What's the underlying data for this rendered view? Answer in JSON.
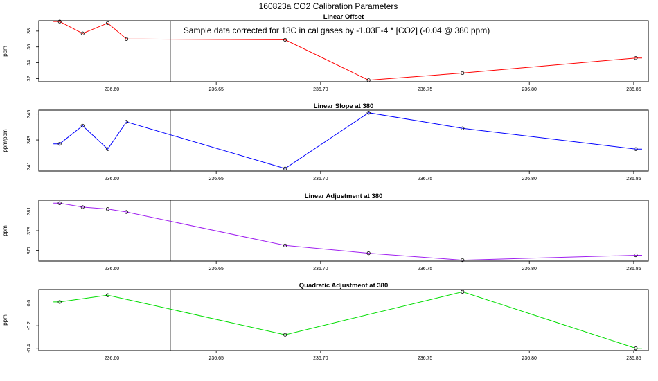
{
  "figure": {
    "title": "160823a   CO2 Calibration Parameters",
    "note": "Sample data corrected for 13C in cal gases by -1.03E-4 * [CO2] (-0.04 @ 380 ppm)"
  },
  "chart_data": [
    {
      "type": "line",
      "title": "Linear Offset",
      "xlabel": "",
      "ylabel": "ppm",
      "xlim": [
        236.565,
        236.857
      ],
      "ylim": [
        31.6,
        39.3
      ],
      "xticks": [
        "236.60",
        "236.65",
        "236.70",
        "236.75",
        "236.80",
        "236.85"
      ],
      "yticks": [
        "32",
        "34",
        "36",
        "38"
      ],
      "vline": 236.628,
      "color": "#ff0000",
      "line_x": [
        236.572,
        236.575,
        236.586,
        236.598,
        236.607,
        236.683,
        236.723,
        236.768,
        236.851,
        236.854
      ],
      "line_y": [
        39.2,
        39.2,
        37.7,
        39.0,
        37.0,
        36.9,
        31.8,
        32.7,
        34.6,
        34.6
      ],
      "points_x": [
        236.575,
        236.586,
        236.598,
        236.607,
        236.683,
        236.723,
        236.768,
        236.851
      ],
      "points_y": [
        39.2,
        37.7,
        39.0,
        37.0,
        36.9,
        31.8,
        32.7,
        34.6
      ]
    },
    {
      "type": "line",
      "title": "Linear Slope at 380",
      "xlabel": "",
      "ylabel": "ppm/ppm",
      "xlim": [
        236.565,
        236.857
      ],
      "ylim": [
        340.6,
        345.3
      ],
      "xticks": [
        "236.60",
        "236.65",
        "236.70",
        "236.75",
        "236.80",
        "236.85"
      ],
      "yticks": [
        "341",
        "343",
        "345"
      ],
      "vline": 236.628,
      "color": "#0000ff",
      "line_x": [
        236.572,
        236.575,
        236.586,
        236.598,
        236.607,
        236.683,
        236.723,
        236.768,
        236.851,
        236.854
      ],
      "line_y": [
        342.7,
        342.7,
        344.1,
        342.3,
        344.4,
        340.8,
        345.1,
        343.9,
        342.3,
        342.3
      ],
      "points_x": [
        236.575,
        236.586,
        236.598,
        236.607,
        236.683,
        236.723,
        236.768,
        236.851
      ],
      "points_y": [
        342.7,
        344.1,
        342.3,
        344.4,
        340.8,
        345.1,
        343.9,
        342.3
      ]
    },
    {
      "type": "line",
      "title": "Linear Adjustment at 380",
      "xlabel": "",
      "ylabel": "ppm",
      "xlim": [
        236.565,
        236.857
      ],
      "ylim": [
        375.9,
        382.1
      ],
      "xticks": [
        "236.60",
        "236.65",
        "236.70",
        "236.75",
        "236.80",
        "236.85"
      ],
      "yticks": [
        "377",
        "379",
        "381"
      ],
      "vline": 236.628,
      "color": "#a020f0",
      "line_x": [
        236.572,
        236.575,
        236.586,
        236.598,
        236.607,
        236.683,
        236.723,
        236.768,
        236.851,
        236.854
      ],
      "line_y": [
        381.8,
        381.8,
        381.4,
        381.2,
        380.9,
        377.5,
        376.7,
        376.0,
        376.5,
        376.5
      ],
      "points_x": [
        236.575,
        236.586,
        236.598,
        236.607,
        236.683,
        236.723,
        236.768,
        236.851
      ],
      "points_y": [
        381.8,
        381.4,
        381.2,
        380.9,
        377.5,
        376.7,
        376.0,
        376.5
      ]
    },
    {
      "type": "line",
      "title": "Quadratic Adjustment at 380",
      "xlabel": "",
      "ylabel": "ppm",
      "xlim": [
        236.565,
        236.857
      ],
      "ylim": [
        -0.42,
        0.12
      ],
      "xticks": [
        "236.60",
        "236.65",
        "236.70",
        "236.75",
        "236.80",
        "236.85"
      ],
      "yticks": [
        "-0.4",
        "-0.2",
        "0.0"
      ],
      "vline": 236.628,
      "color": "#00dd00",
      "line_x": [
        236.572,
        236.575,
        236.598,
        236.683,
        236.768,
        236.851,
        236.854
      ],
      "line_y": [
        0.01,
        0.01,
        0.07,
        -0.28,
        0.1,
        -0.4,
        -0.4
      ],
      "points_x": [
        236.575,
        236.598,
        236.683,
        236.768,
        236.851
      ],
      "points_y": [
        0.01,
        0.07,
        -0.28,
        0.1,
        -0.4
      ]
    }
  ]
}
